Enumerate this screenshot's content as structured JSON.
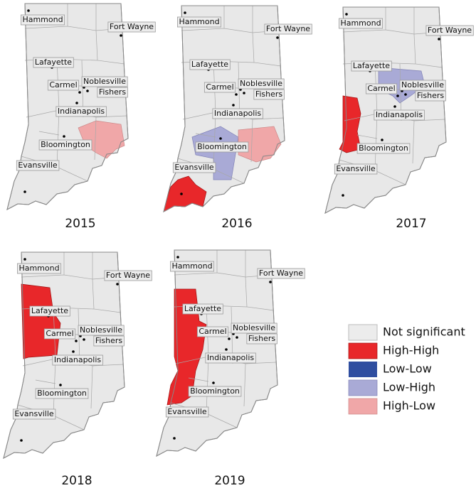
{
  "panels": [
    {
      "year": "2015",
      "cities": [
        "Hammond",
        "Fort Wayne",
        "Lafayette",
        "Carmel",
        "Noblesville",
        "Fishers",
        "Indianapolis",
        "Bloomington",
        "Evansville"
      ]
    },
    {
      "year": "2016",
      "cities": [
        "Hammond",
        "Fort Wayne",
        "Lafayette",
        "Carmel",
        "Noblesville",
        "Fishers",
        "Indianapolis",
        "Bloomington",
        "Evansville"
      ]
    },
    {
      "year": "2017",
      "cities": [
        "Hammond",
        "Fort Wayne",
        "Lafayette",
        "Carmel",
        "Noblesville",
        "Fishers",
        "Indianapolis",
        "Bloomington",
        "Evansville"
      ]
    },
    {
      "year": "2018",
      "cities": [
        "Hammond",
        "Fort Wayne",
        "Lafayette",
        "Carmel",
        "Noblesville",
        "Fishers",
        "Indianapolis",
        "Bloomington",
        "Evansville"
      ]
    },
    {
      "year": "2019",
      "cities": [
        "Hammond",
        "Fort Wayne",
        "Lafayette",
        "Carmel",
        "Noblesville",
        "Fishers",
        "Indianapolis",
        "Bloomington",
        "Evansville"
      ]
    }
  ],
  "legend": [
    "Not significant",
    "High-High",
    "Low-Low",
    "Low-High",
    "High-Low"
  ]
}
